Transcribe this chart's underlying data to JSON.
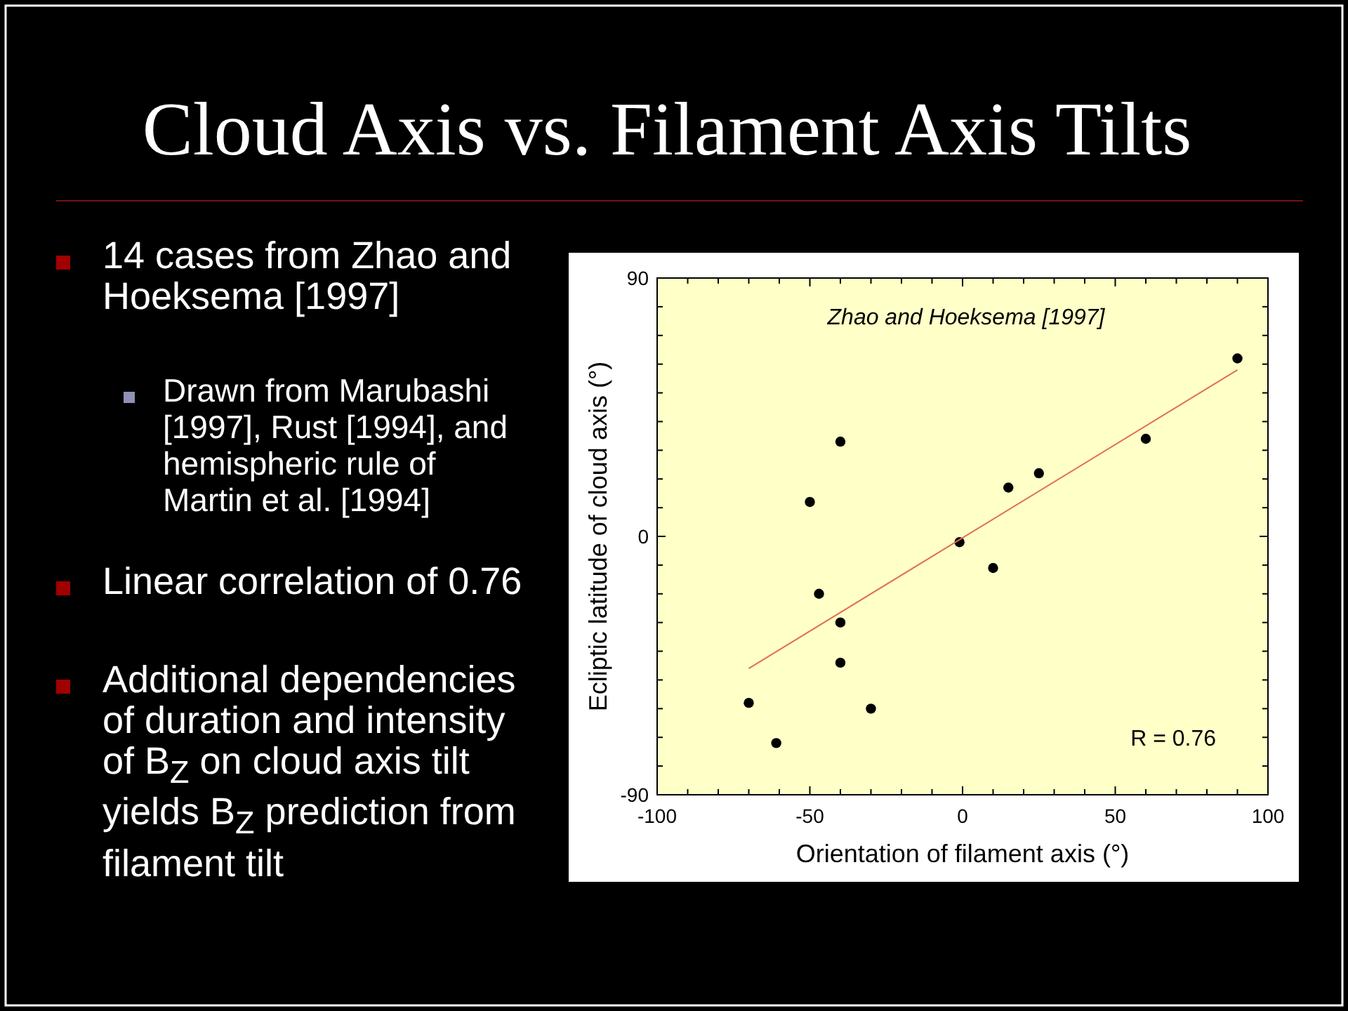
{
  "chart_data": {
    "type": "scatter",
    "title": "Cloud Axis vs. Filament Axis Tilts",
    "xlabel": "Orientation of filament axis (°)",
    "ylabel": "Ecliptic latitude of cloud axis (°)",
    "x": [
      90,
      60,
      25,
      15,
      -1,
      10,
      -40,
      -50,
      -47,
      -40,
      -40,
      -70,
      -30,
      -61
    ],
    "series": [
      {
        "color": "#000000",
        "marker": "circle",
        "values": [
          62,
          34,
          22,
          17,
          -2,
          -11,
          33,
          12,
          -20,
          -30,
          -44,
          -58,
          -60,
          -72
        ]
      },
      {
        "type": "line",
        "color": "#e07050",
        "x": [
          -70,
          90
        ],
        "values": [
          -46,
          58
        ],
        "marker": "none"
      }
    ],
    "xlim": [
      -100,
      100
    ],
    "ylim": [
      -90,
      90
    ],
    "xticks": [
      -100,
      {
        "value": -90,
        "label": null
      },
      {
        "value": -80,
        "label": null
      },
      {
        "value": -70,
        "label": null
      },
      {
        "value": -60,
        "label": null
      },
      -50,
      {
        "value": -40,
        "label": null
      },
      {
        "value": -30,
        "label": null
      },
      {
        "value": -20,
        "label": null
      },
      {
        "value": -10,
        "label": null
      },
      0,
      {
        "value": 10,
        "label": null
      },
      {
        "value": 20,
        "label": null
      },
      {
        "value": 30,
        "label": null
      },
      {
        "value": 40,
        "label": null
      },
      50,
      {
        "value": 60,
        "label": null
      },
      {
        "value": 70,
        "label": null
      },
      {
        "value": 80,
        "label": null
      },
      {
        "value": 90,
        "label": null
      },
      100
    ],
    "yticks": [
      -90,
      {
        "value": -80,
        "label": null
      },
      {
        "value": -70,
        "label": null
      },
      {
        "value": -60,
        "label": null
      },
      {
        "value": -50,
        "label": null
      },
      {
        "value": -40,
        "label": null
      },
      {
        "value": -30,
        "label": null
      },
      {
        "value": -20,
        "label": null
      },
      {
        "value": -10,
        "label": null
      },
      0,
      {
        "value": 10,
        "label": null
      },
      {
        "value": 20,
        "label": null
      },
      {
        "value": 30,
        "label": null
      },
      {
        "value": 40,
        "label": null
      },
      {
        "value": 50,
        "label": null
      },
      {
        "value": 60,
        "label": null
      },
      {
        "value": 70,
        "label": null
      },
      {
        "value": 80,
        "label": null
      },
      90
    ],
    "annotations": [
      "Zhao and Hoeksema [1997]",
      "R = 0.76",
      "14 cases from Zhao and Hoeksema [1997]",
      "Drawn from Marubashi [1997], Rust [1994], and hemispheric rule of Martin et al. [1994]",
      "Linear correlation of 0.76",
      "Additional dependencies of duration and intensity of B$_{Z}$ on cloud axis tilt yields B$_{Z}$ prediction from filament tilt"
    ]
  }
}
